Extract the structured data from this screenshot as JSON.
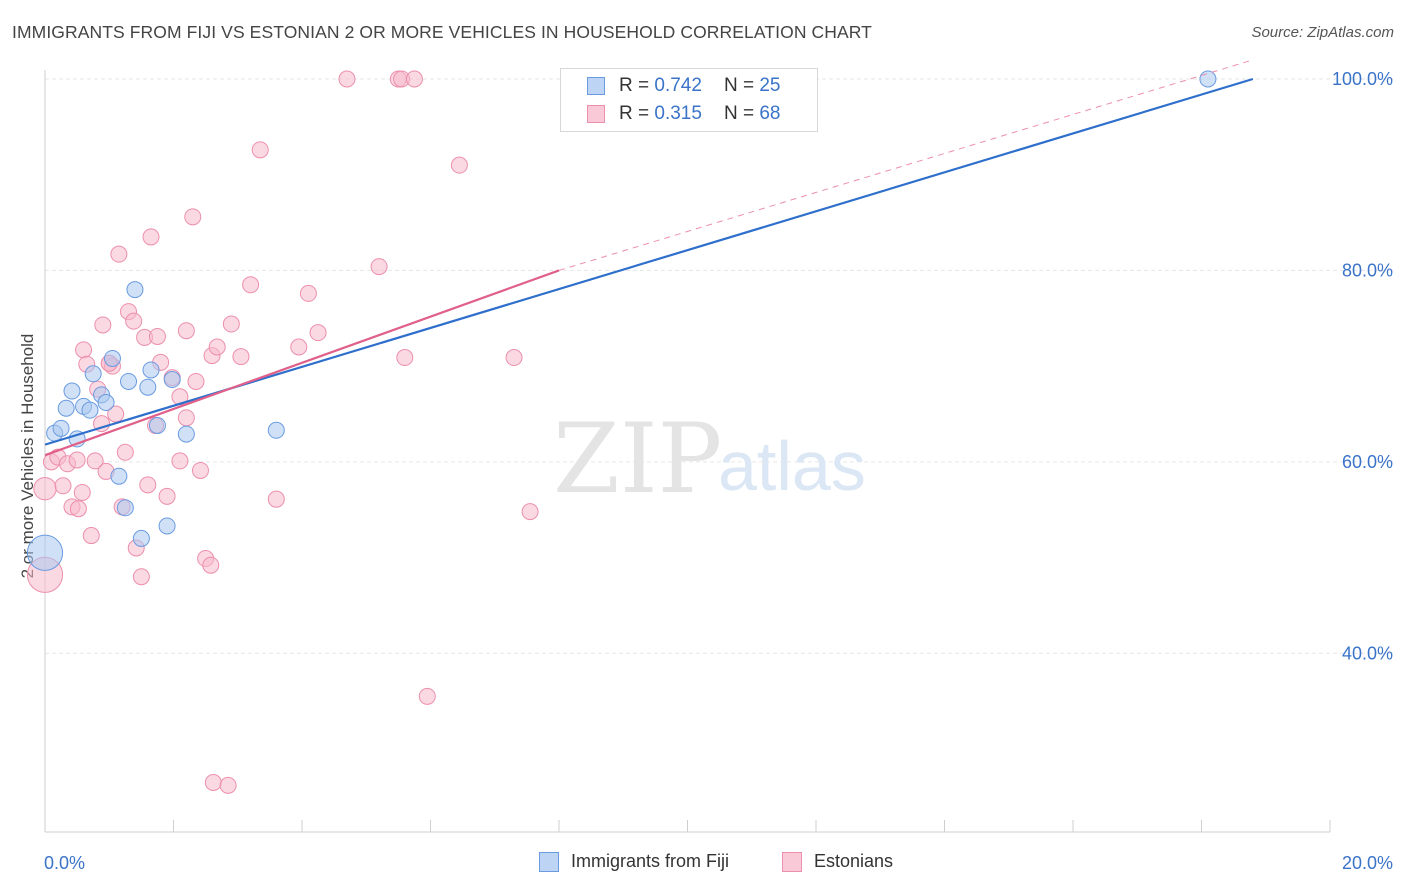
{
  "title": "IMMIGRANTS FROM FIJI VS ESTONIAN 2 OR MORE VEHICLES IN HOUSEHOLD CORRELATION CHART",
  "source": "Source: ZipAtlas.com",
  "watermark": {
    "zip": "ZIP",
    "atlas": "atlas"
  },
  "colors": {
    "blue_fill": "#a9c8f0",
    "blue_stroke": "#6a9be0",
    "blue_line": "#2f6fcc",
    "pink_fill": "#f7b9cc",
    "pink_stroke": "#ec8fad",
    "pink_line": "#e0608a",
    "axis_text": "#3a73c8",
    "grid": "#e6e6e6"
  },
  "legend": {
    "rows": [
      {
        "r_label": "R =",
        "r_value": "0.742",
        "n_label": "N =",
        "n_value": "25"
      },
      {
        "r_label": "R =",
        "r_value": "0.315",
        "n_label": "N =",
        "n_value": "68"
      }
    ]
  },
  "bottom_legend": {
    "series1": "Immigrants from Fiji",
    "series2": "Estonians"
  },
  "chart_data": {
    "type": "scatter",
    "title": "IMMIGRANTS FROM FIJI VS ESTONIAN 2 OR MORE VEHICLES IN HOUSEHOLD CORRELATION CHART",
    "xlabel": "",
    "ylabel": "2 or more Vehicles in Household",
    "xlim": [
      0,
      20
    ],
    "ylim": [
      20,
      102
    ],
    "x_tick_labels": [
      "0.0%",
      "20.0%"
    ],
    "y_ticks": [
      40,
      60,
      80,
      100
    ],
    "y_tick_labels": [
      "40.0%",
      "60.0%",
      "80.0%",
      "100.0%"
    ],
    "grid": true,
    "legend_position": "top-center",
    "series": [
      {
        "name": "Immigrants from Fiji",
        "r": 0.742,
        "n": 25,
        "trend": {
          "x0": 0,
          "y0": 61.8,
          "x1": 18.8,
          "y1": 100.0
        },
        "points": [
          [
            0.0,
            50.5,
            22
          ],
          [
            0.15,
            63.0,
            10
          ],
          [
            0.25,
            63.5,
            10
          ],
          [
            0.33,
            65.6,
            10
          ],
          [
            0.42,
            67.4,
            10
          ],
          [
            0.5,
            62.4,
            10
          ],
          [
            0.6,
            65.8,
            10
          ],
          [
            0.7,
            65.4,
            10
          ],
          [
            0.75,
            69.2,
            10
          ],
          [
            0.88,
            67.0,
            10
          ],
          [
            0.95,
            66.2,
            10
          ],
          [
            1.05,
            70.8,
            10
          ],
          [
            1.15,
            58.5,
            10
          ],
          [
            1.25,
            55.2,
            10
          ],
          [
            1.3,
            68.4,
            10
          ],
          [
            1.4,
            78.0,
            10
          ],
          [
            1.5,
            52.0,
            10
          ],
          [
            1.6,
            67.8,
            10
          ],
          [
            1.65,
            69.6,
            10
          ],
          [
            1.75,
            63.8,
            10
          ],
          [
            1.9,
            53.3,
            10
          ],
          [
            1.98,
            68.6,
            10
          ],
          [
            2.2,
            62.9,
            10
          ],
          [
            3.6,
            63.3,
            10
          ],
          [
            18.1,
            100.0,
            10
          ]
        ]
      },
      {
        "name": "Estonians",
        "r": 0.315,
        "n": 68,
        "trend": {
          "x0": 0,
          "y0": 60.7,
          "x1": 8.0,
          "y1": 80.0,
          "dash_x1": 18.8,
          "dash_y1": 102.0
        },
        "points": [
          [
            0.0,
            48.2,
            22
          ],
          [
            0.0,
            57.2,
            14
          ],
          [
            0.1,
            60.0,
            10
          ],
          [
            0.2,
            60.5,
            10
          ],
          [
            0.28,
            57.5,
            10
          ],
          [
            0.35,
            59.8,
            10
          ],
          [
            0.42,
            55.3,
            10
          ],
          [
            0.5,
            60.2,
            10
          ],
          [
            0.52,
            55.1,
            10
          ],
          [
            0.58,
            56.8,
            10
          ],
          [
            0.6,
            71.7,
            10
          ],
          [
            0.65,
            70.2,
            10
          ],
          [
            0.72,
            52.3,
            10
          ],
          [
            0.78,
            60.1,
            10
          ],
          [
            0.82,
            67.6,
            10
          ],
          [
            0.88,
            64.0,
            10
          ],
          [
            0.9,
            74.3,
            10
          ],
          [
            0.95,
            59.0,
            10
          ],
          [
            1.0,
            70.3,
            10
          ],
          [
            1.05,
            70.0,
            10
          ],
          [
            1.1,
            65.0,
            10
          ],
          [
            1.15,
            81.7,
            10
          ],
          [
            1.2,
            55.3,
            10
          ],
          [
            1.25,
            61.0,
            10
          ],
          [
            1.3,
            75.7,
            10
          ],
          [
            1.38,
            74.7,
            10
          ],
          [
            1.42,
            51.0,
            10
          ],
          [
            1.5,
            48.0,
            10
          ],
          [
            1.55,
            73.0,
            10
          ],
          [
            1.6,
            57.6,
            10
          ],
          [
            1.65,
            83.5,
            10
          ],
          [
            1.72,
            63.8,
            10
          ],
          [
            1.75,
            73.1,
            10
          ],
          [
            1.8,
            70.4,
            10
          ],
          [
            1.9,
            56.4,
            10
          ],
          [
            1.98,
            68.8,
            10
          ],
          [
            2.1,
            60.1,
            10
          ],
          [
            2.1,
            66.8,
            10
          ],
          [
            2.2,
            73.7,
            10
          ],
          [
            2.2,
            64.6,
            10
          ],
          [
            2.3,
            85.6,
            10
          ],
          [
            2.35,
            68.4,
            10
          ],
          [
            2.42,
            59.1,
            10
          ],
          [
            2.5,
            49.9,
            10
          ],
          [
            2.58,
            49.2,
            10
          ],
          [
            2.62,
            26.5,
            10
          ],
          [
            2.6,
            71.1,
            10
          ],
          [
            2.68,
            72.0,
            10
          ],
          [
            2.85,
            26.2,
            10
          ],
          [
            2.9,
            74.4,
            10
          ],
          [
            3.05,
            71.0,
            10
          ],
          [
            3.2,
            78.5,
            10
          ],
          [
            3.35,
            92.6,
            10
          ],
          [
            3.6,
            56.1,
            10
          ],
          [
            3.95,
            72.0,
            10
          ],
          [
            4.1,
            77.6,
            10
          ],
          [
            4.25,
            73.5,
            10
          ],
          [
            4.7,
            100.0,
            10
          ],
          [
            5.2,
            80.4,
            10
          ],
          [
            5.5,
            100.0,
            10
          ],
          [
            5.55,
            100.0,
            10
          ],
          [
            5.6,
            70.9,
            10
          ],
          [
            5.75,
            100.0,
            10
          ],
          [
            5.95,
            35.5,
            10
          ],
          [
            6.45,
            91.0,
            10
          ],
          [
            7.3,
            70.9,
            10
          ],
          [
            7.55,
            54.8,
            10
          ],
          [
            1.0,
            70.3,
            10
          ]
        ]
      }
    ]
  }
}
